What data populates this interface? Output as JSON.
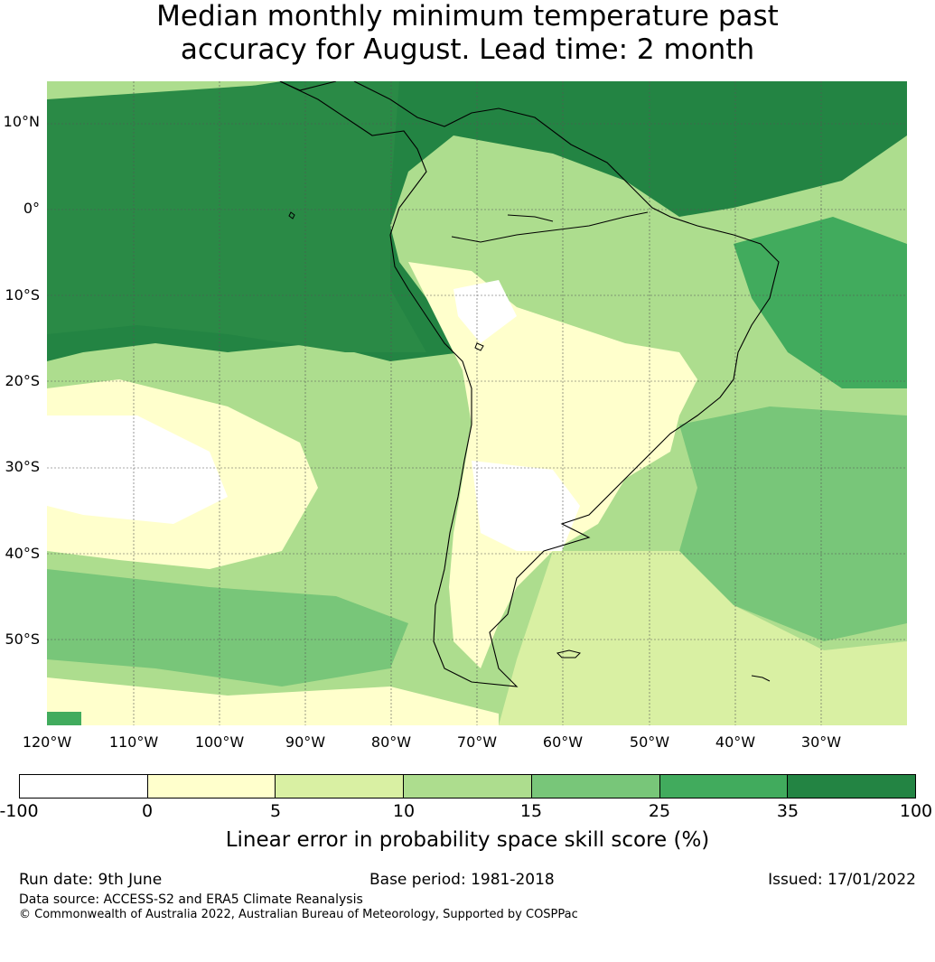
{
  "title_line1": "Median monthly minimum temperature past",
  "title_line2": "accuracy for August. Lead time: 2 month",
  "map": {
    "lat_labels": [
      "10°N",
      "0°",
      "10°S",
      "20°S",
      "30°S",
      "40°S",
      "50°S"
    ],
    "lon_labels": [
      "120°W",
      "110°W",
      "100°W",
      "90°W",
      "80°W",
      "70°W",
      "60°W",
      "50°W",
      "40°W",
      "30°W"
    ]
  },
  "colorbar": {
    "ticks": [
      "-100",
      "0",
      "5",
      "10",
      "15",
      "25",
      "35",
      "100"
    ],
    "colors": [
      "#ffffff",
      "#ffffcc",
      "#d9f0a3",
      "#addd8e",
      "#78c679",
      "#41ab5d",
      "#238443"
    ],
    "label": "Linear error in probability space skill score (%)"
  },
  "footer": {
    "run_date": "Run date: 9th June",
    "base_period": "Base period: 1981-2018",
    "issued": "Issued: 17/01/2022",
    "data_source": "Data source: ACCESS-S2 and ERA5 Climate Reanalysis",
    "copyright": "© Commonwealth of Australia 2022, Australian Bureau of Meteorology, Supported by COSPPac"
  }
}
